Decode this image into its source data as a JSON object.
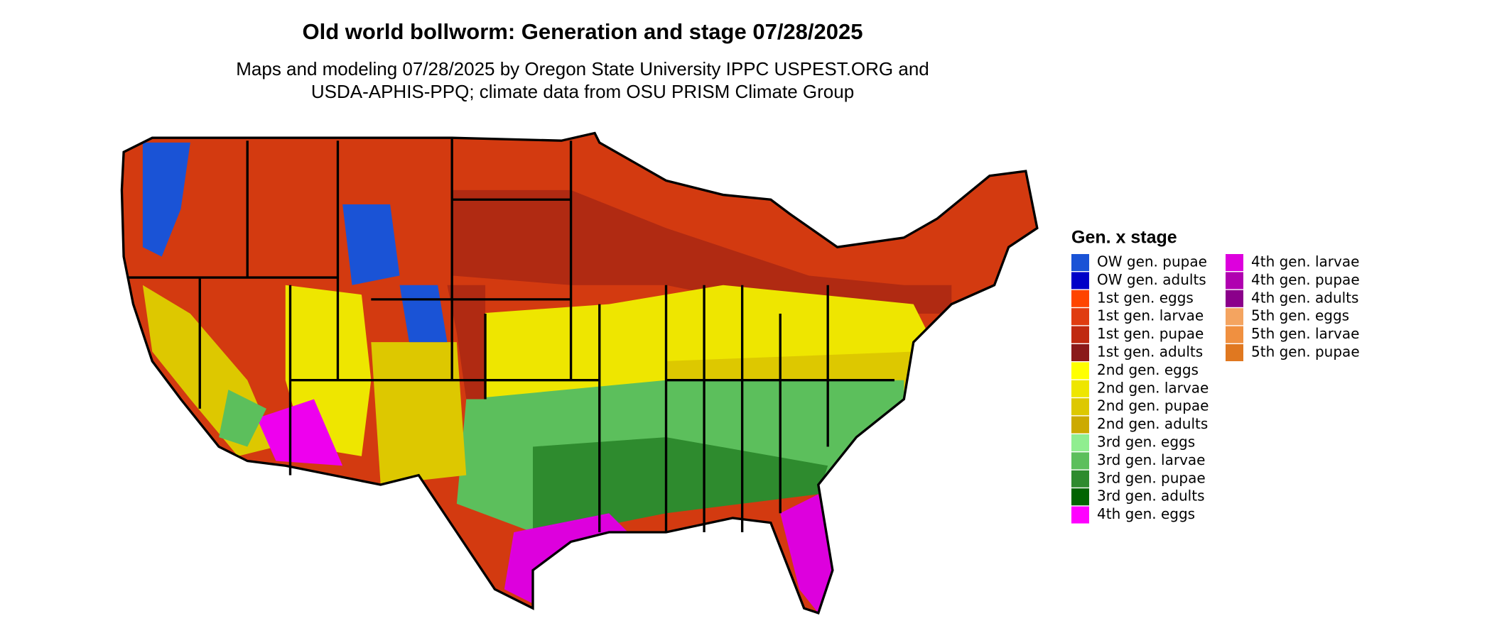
{
  "header": {
    "title": "Old world bollworm: Generation and stage 07/28/2025",
    "subtitle_lines": [
      "Maps and modeling 07/28/2025 by Oregon State University IPPC USPEST.ORG and",
      "USDA-APHIS-PPQ; climate data from OSU PRISM Climate Group"
    ]
  },
  "legend": {
    "title": "Gen. x stage",
    "rows_per_column": 15,
    "items": [
      {
        "label": "OW gen. pupae",
        "color": "#1a53d6"
      },
      {
        "label": "OW gen. adults",
        "color": "#0000c8"
      },
      {
        "label": "1st gen. eggs",
        "color": "#ff4500"
      },
      {
        "label": "1st gen. larvae",
        "color": "#e03c10"
      },
      {
        "label": "1st gen. pupae",
        "color": "#c02a10"
      },
      {
        "label": "1st gen. adults",
        "color": "#8b1a1a"
      },
      {
        "label": "2nd gen. eggs",
        "color": "#ffff00"
      },
      {
        "label": "2nd gen. larvae",
        "color": "#eee600"
      },
      {
        "label": "2nd gen. pupae",
        "color": "#ddc800"
      },
      {
        "label": "2nd gen. adults",
        "color": "#ccaa00"
      },
      {
        "label": "3rd gen. eggs",
        "color": "#90ee90"
      },
      {
        "label": "3rd gen. larvae",
        "color": "#5cbf5c"
      },
      {
        "label": "3rd gen. pupae",
        "color": "#2e8b2e"
      },
      {
        "label": "3rd gen. adults",
        "color": "#006400"
      },
      {
        "label": "4th gen. eggs",
        "color": "#ff00ff"
      },
      {
        "label": "4th gen. larvae",
        "color": "#dd00dd"
      },
      {
        "label": "4th gen. pupae",
        "color": "#b000b0"
      },
      {
        "label": "4th gen. adults",
        "color": "#8b008b"
      },
      {
        "label": "5th gen. eggs",
        "color": "#f4a460"
      },
      {
        "label": "5th gen. larvae",
        "color": "#f09040"
      },
      {
        "label": "5th gen. pupae",
        "color": "#e07820"
      }
    ]
  }
}
